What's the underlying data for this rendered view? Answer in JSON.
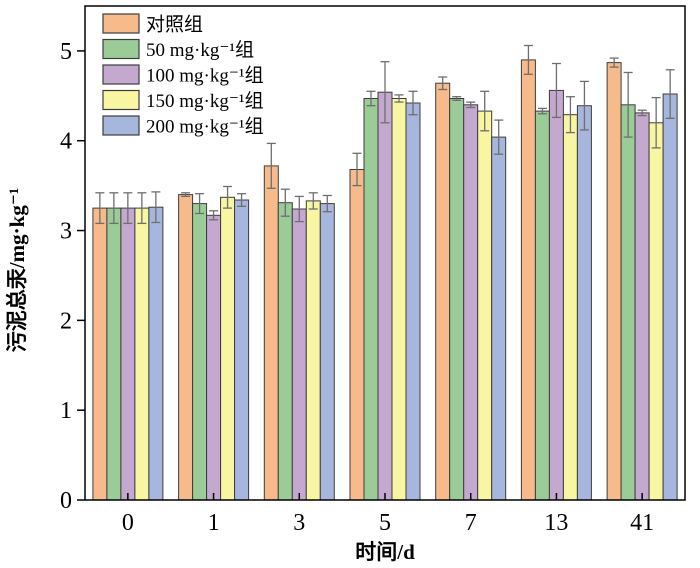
{
  "chart_data": {
    "type": "bar",
    "title": "",
    "xlabel": "时间/d",
    "ylabel": "污泥总汞/mg·kg⁻¹",
    "categories": [
      "0",
      "1",
      "3",
      "5",
      "7",
      "13",
      "41"
    ],
    "ylim": [
      0,
      5.5
    ],
    "yticks": [
      0,
      1,
      2,
      3,
      4,
      5
    ],
    "grid": false,
    "legend_position": "top-left-inside",
    "error_bars": true,
    "series": [
      {
        "name": "对照组",
        "color": "#F6BA8B",
        "values": [
          3.25,
          3.4,
          3.72,
          3.68,
          4.64,
          4.9,
          4.87
        ],
        "errors": [
          0.17,
          0.02,
          0.25,
          0.18,
          0.07,
          0.16,
          0.05
        ]
      },
      {
        "name": "50 mg·kg⁻¹组",
        "color": "#9BCC97",
        "values": [
          3.25,
          3.3,
          3.31,
          4.47,
          4.47,
          4.33,
          4.4
        ],
        "errors": [
          0.17,
          0.11,
          0.15,
          0.08,
          0.02,
          0.03,
          0.36
        ]
      },
      {
        "name": "100 mg·kg⁻¹组",
        "color": "#C5A8D0",
        "values": [
          3.25,
          3.17,
          3.24,
          4.54,
          4.4,
          4.56,
          4.31
        ],
        "errors": [
          0.17,
          0.05,
          0.14,
          0.34,
          0.03,
          0.3,
          0.03
        ]
      },
      {
        "name": "150 mg·kg⁻¹组",
        "color": "#F8F5A3",
        "values": [
          3.25,
          3.37,
          3.33,
          4.47,
          4.33,
          4.29,
          4.2
        ],
        "errors": [
          0.17,
          0.12,
          0.09,
          0.04,
          0.22,
          0.2,
          0.28
        ]
      },
      {
        "name": "200 mg·kg⁻¹组",
        "color": "#A7B6DD",
        "values": [
          3.26,
          3.34,
          3.3,
          4.42,
          4.04,
          4.39,
          4.52
        ],
        "errors": [
          0.17,
          0.07,
          0.09,
          0.13,
          0.19,
          0.27,
          0.27
        ]
      }
    ]
  },
  "colors": {
    "background": "#ffffff",
    "axis": "#000000",
    "bar_border": "#3d3d3d",
    "error_bar": "#6e6e6e",
    "legend_border": "#3d3d3d"
  }
}
